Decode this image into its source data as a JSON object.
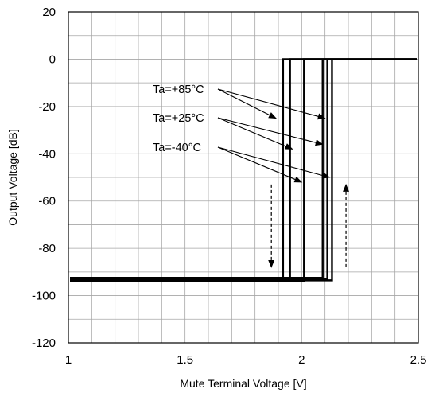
{
  "chart_data": {
    "type": "line",
    "title": "",
    "xlabel": "Mute Terminal Voltage [V]",
    "ylabel": "Output Voltage [dB]",
    "xlim": [
      1,
      2.5
    ],
    "ylim": [
      -120,
      20
    ],
    "x_major_ticks": [
      1,
      1.5,
      2,
      2.5
    ],
    "x_tick_labels": [
      "1",
      "1.5",
      "2",
      "2.5"
    ],
    "y_major_ticks": [
      -120,
      -100,
      -80,
      -60,
      -40,
      -20,
      0,
      20
    ],
    "y_tick_labels": [
      "-120",
      "-100",
      "-80",
      "-60",
      "-40",
      "-20",
      "0",
      "20"
    ],
    "grid": "major and minor",
    "low_level_db": -93,
    "high_level_db": 0,
    "series": [
      {
        "name": "Ta=+85°C",
        "threshold_falling_v": 1.92,
        "threshold_rising_v": 2.09
      },
      {
        "name": "Ta=+25°C",
        "threshold_falling_v": 1.95,
        "threshold_rising_v": 2.11
      },
      {
        "name": "Ta=-40°C",
        "threshold_falling_v": 2.01,
        "threshold_rising_v": 2.13
      }
    ],
    "annotations": [
      {
        "text": "Ta=+85°C",
        "points_to": [
          [
            1.89,
            -25
          ],
          [
            2.1,
            -25
          ]
        ]
      },
      {
        "text": "Ta=+25°C",
        "points_to": [
          [
            1.96,
            -38
          ],
          [
            2.09,
            -36
          ]
        ]
      },
      {
        "text": "Ta=-40°C",
        "points_to": [
          [
            2.0,
            -52
          ],
          [
            2.12,
            -50
          ]
        ]
      }
    ],
    "direction_arrows": [
      {
        "x": 1.87,
        "from_y": -53,
        "to_y": -88,
        "direction": "down"
      },
      {
        "x": 2.19,
        "from_y": -88,
        "to_y": -53,
        "direction": "up"
      }
    ]
  }
}
